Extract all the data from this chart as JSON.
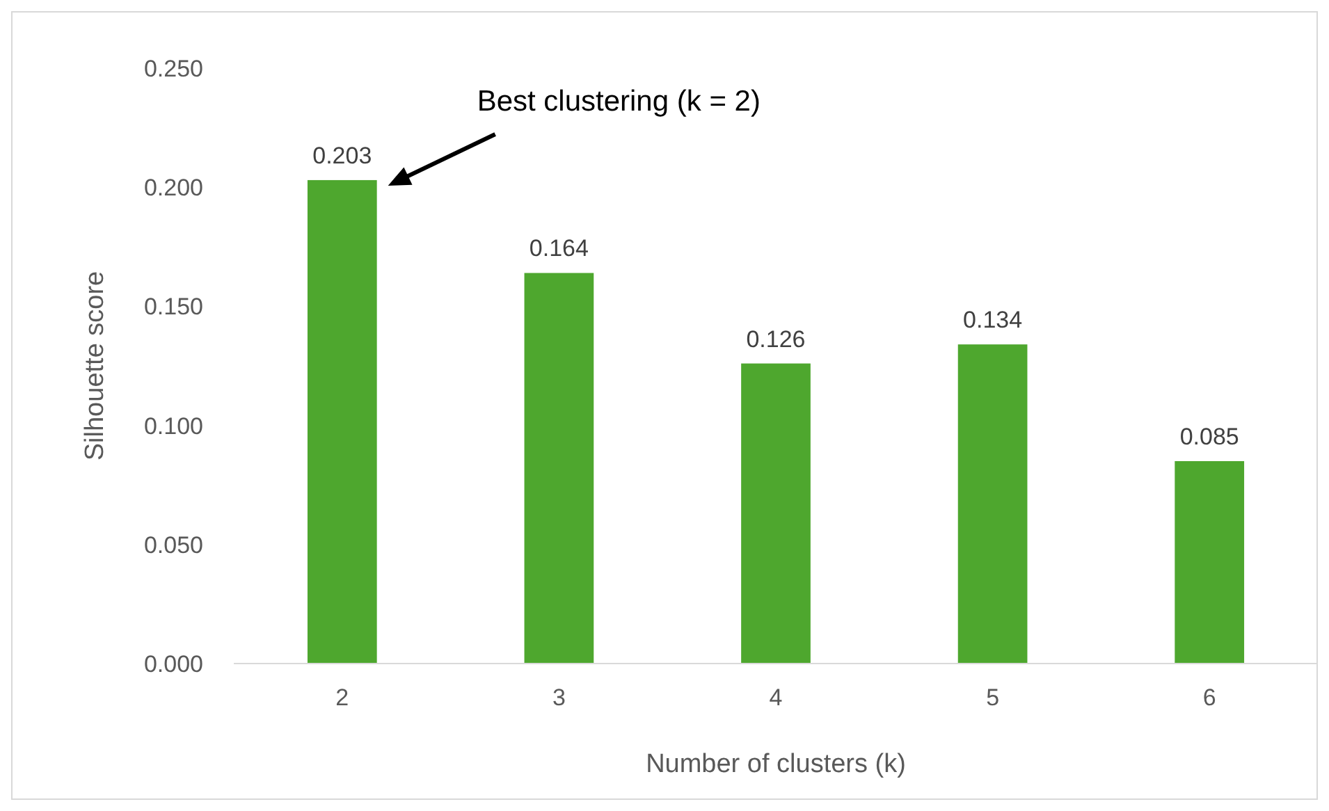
{
  "chart_data": {
    "type": "bar",
    "xlabel": "Number of clusters (k)",
    "ylabel": "Silhouette score",
    "categories": [
      "2",
      "3",
      "4",
      "5",
      "6"
    ],
    "values": [
      0.203,
      0.164,
      0.126,
      0.134,
      0.085
    ],
    "color": "#4ea72e",
    "ylim": [
      0,
      0.25
    ],
    "yticks": [
      {
        "value": 0,
        "label": "0.000"
      },
      {
        "value": 0.05,
        "label": "0.050"
      },
      {
        "value": 0.1,
        "label": "0.100"
      },
      {
        "value": 0.15,
        "label": "0.150"
      },
      {
        "value": 0.2,
        "label": "0.200"
      },
      {
        "value": 0.25,
        "label": "0.250"
      }
    ],
    "data_labels": true,
    "grid": false,
    "annotations": [
      "Best clustering (k = 2)"
    ]
  }
}
